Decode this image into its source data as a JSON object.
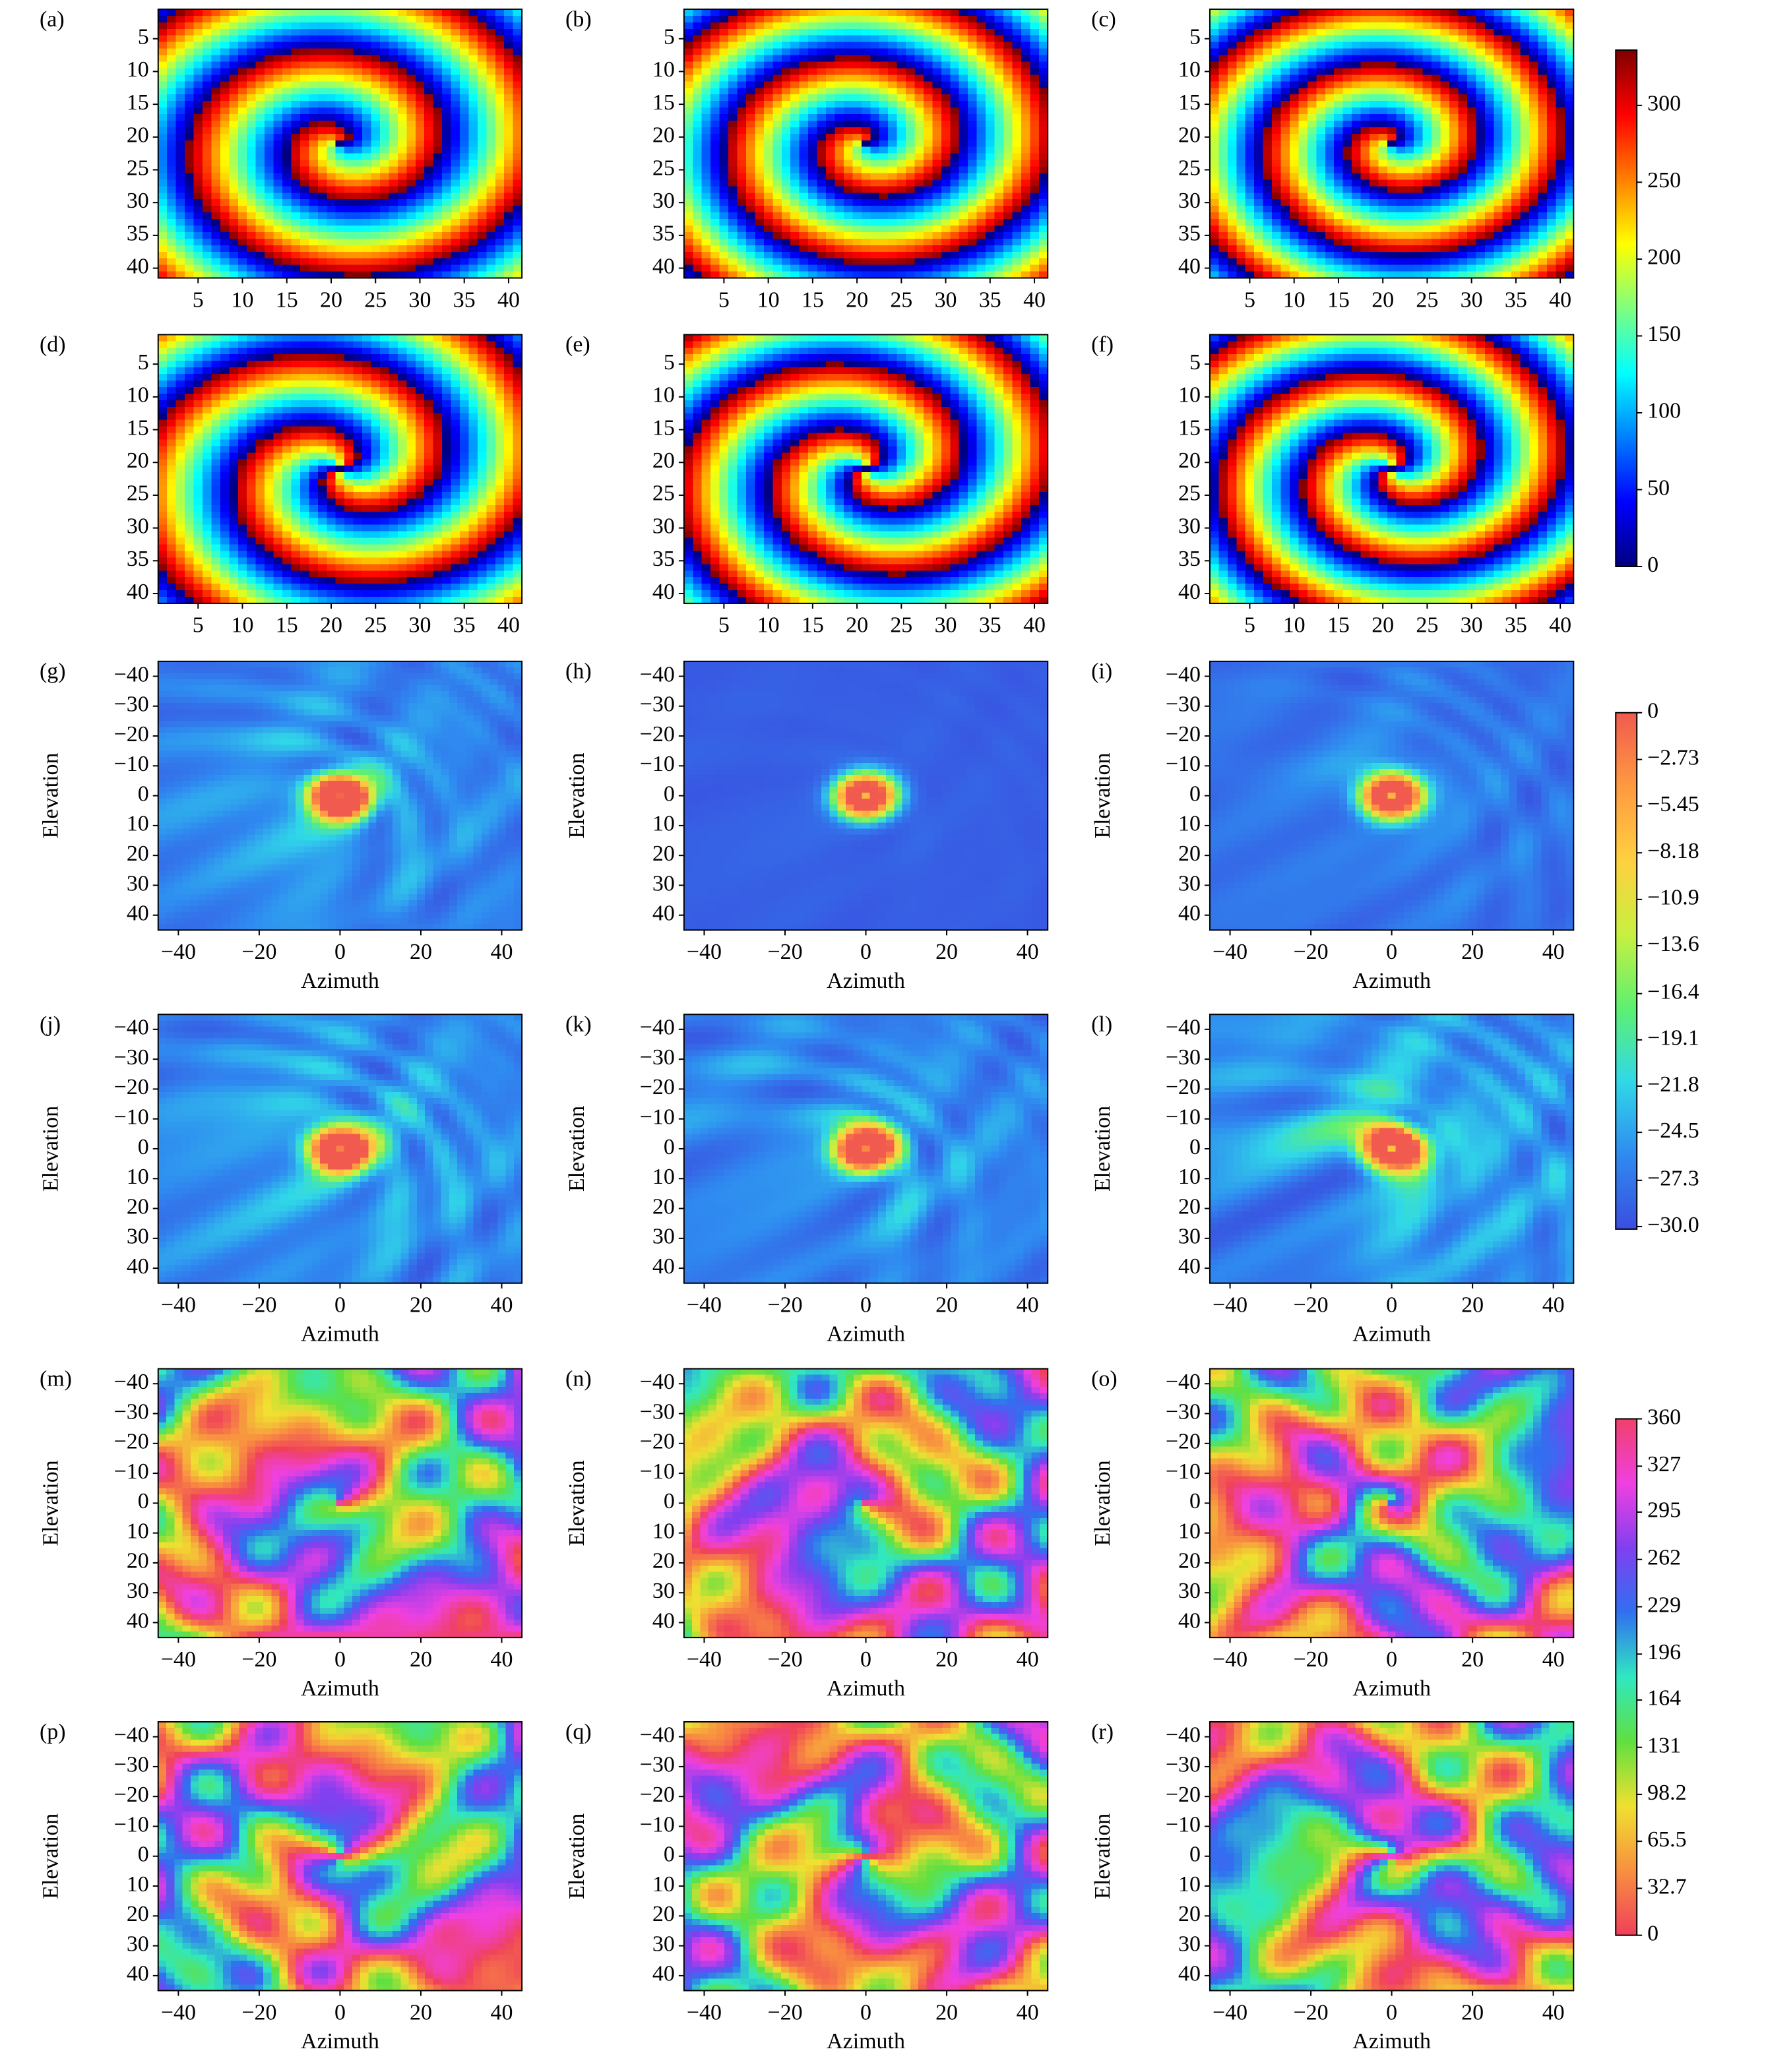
{
  "chart_data": {
    "type": "heatmap",
    "groups": [
      {
        "panels": [
          "(a)",
          "(b)",
          "(c)",
          "(d)",
          "(e)",
          "(f)"
        ],
        "xlim": [
          0.5,
          41.5
        ],
        "ylim": [
          41.5,
          0.5
        ],
        "xticks": [
          5,
          10,
          15,
          20,
          25,
          30,
          35,
          40
        ],
        "yticks": [
          5,
          10,
          15,
          20,
          25,
          30,
          35,
          40
        ],
        "colorbar": {
          "clim": [
            0,
            336
          ],
          "ticks": [
            0,
            50,
            100,
            150,
            200,
            250,
            300
          ],
          "colormap": [
            "#00007f",
            "#0000ff",
            "#007fff",
            "#00ffff",
            "#7fff7f",
            "#ffff00",
            "#ff7f00",
            "#ff0000",
            "#7f0000"
          ]
        }
      },
      {
        "panels": [
          "(g)",
          "(h)",
          "(i)",
          "(j)",
          "(k)",
          "(l)"
        ],
        "xlabel": "Azimuth",
        "ylabel": "Elevation",
        "xlim": [
          -45,
          45
        ],
        "ylim": [
          45,
          -45
        ],
        "xticks": [
          {
            "value": -40,
            "label": "−40"
          },
          {
            "value": -20,
            "label": "−20"
          },
          0,
          20,
          40
        ],
        "yticks": [
          {
            "value": -40,
            "label": "−40"
          },
          {
            "value": -30,
            "label": "−30"
          },
          {
            "value": -20,
            "label": "−20"
          },
          {
            "value": -10,
            "label": "−10"
          },
          0,
          10,
          20,
          30,
          40
        ],
        "colorbar": {
          "clim": [
            -30.15,
            0
          ],
          "ticks": [
            0,
            {
              "value": -2.73,
              "label": "−2.73"
            },
            {
              "value": -5.45,
              "label": "−5.45"
            },
            {
              "value": -8.18,
              "label": "−8.18"
            },
            {
              "value": -10.9,
              "label": "−10.9"
            },
            {
              "value": -13.6,
              "label": "−13.6"
            },
            {
              "value": -16.4,
              "label": "−16.4"
            },
            {
              "value": -19.1,
              "label": "−19.1"
            },
            {
              "value": -21.8,
              "label": "−21.8"
            },
            {
              "value": -24.5,
              "label": "−24.5"
            },
            {
              "value": -27.3,
              "label": "−27.3"
            },
            {
              "value": -30,
              "label": "−30.0"
            }
          ],
          "colormap": [
            "#3a4ee0",
            "#2f8af0",
            "#30d8e8",
            "#5ef070",
            "#c8f040",
            "#ffd040",
            "#ff9a40",
            "#f05a4f"
          ]
        }
      },
      {
        "panels": [
          "(m)",
          "(n)",
          "(o)",
          "(p)",
          "(q)",
          "(r)"
        ],
        "xlabel": "Azimuth",
        "ylabel": "Elevation",
        "xlim": [
          -45,
          45
        ],
        "ylim": [
          45,
          -45
        ],
        "xticks": [
          {
            "value": -40,
            "label": "−40"
          },
          {
            "value": -20,
            "label": "−20"
          },
          0,
          20,
          40
        ],
        "yticks": [
          {
            "value": -40,
            "label": "−40"
          },
          {
            "value": -30,
            "label": "−30"
          },
          {
            "value": -20,
            "label": "−20"
          },
          {
            "value": -10,
            "label": "−10"
          },
          0,
          10,
          20,
          30,
          40
        ],
        "colorbar": {
          "clim": [
            0,
            360
          ],
          "ticks": [
            360,
            327,
            295,
            262,
            229,
            196,
            164,
            131,
            98.2,
            65.5,
            32.7,
            0
          ],
          "colormap": [
            "#f0405a",
            "#f89040",
            "#f0e030",
            "#60e040",
            "#30e8c0",
            "#3070f0",
            "#8040f0",
            "#f040e0",
            "#f0406a"
          ]
        }
      }
    ]
  }
}
